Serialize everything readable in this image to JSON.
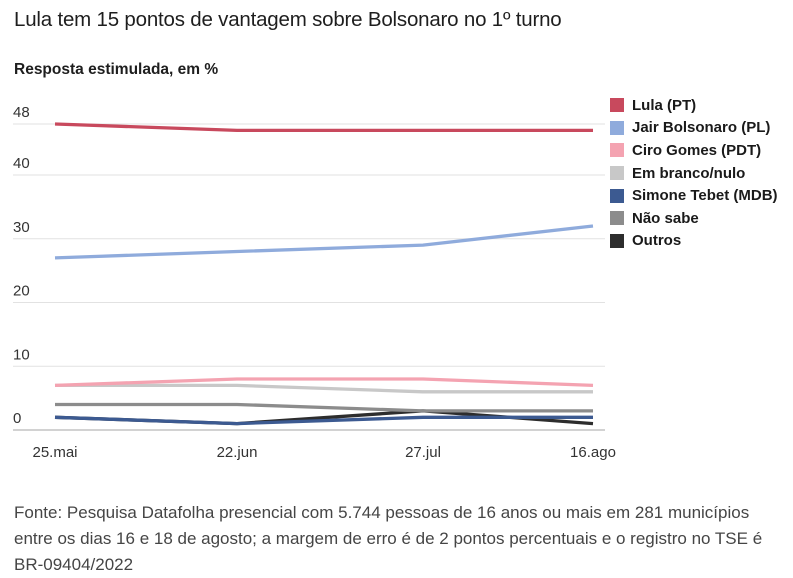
{
  "header": {
    "title": "Lula tem 15 pontos de vantagem sobre Bolsonaro no 1º turno",
    "subtitle": "Resposta estimulada, em %"
  },
  "chart_data": {
    "type": "line",
    "x": [
      "25.mai",
      "22.jun",
      "27.jul",
      "16.ago"
    ],
    "series": [
      {
        "name": "Lula (PT)",
        "color": "#c8495d",
        "values": [
          48,
          47,
          47,
          47
        ]
      },
      {
        "name": "Jair Bolsonaro (PL)",
        "color": "#8fabdc",
        "values": [
          27,
          28,
          29,
          32
        ]
      },
      {
        "name": "Ciro Gomes (PDT)",
        "color": "#f4a3b1",
        "values": [
          7,
          8,
          8,
          7
        ]
      },
      {
        "name": "Em branco/nulo",
        "color": "#c8c8c8",
        "values": [
          7,
          7,
          6,
          6
        ]
      },
      {
        "name": "Simone Tebet (MDB)",
        "color": "#3c5a91",
        "values": [
          2,
          1,
          2,
          2
        ]
      },
      {
        "name": "Não sabe",
        "color": "#8c8c8c",
        "values": [
          4,
          4,
          3,
          3
        ]
      },
      {
        "name": "Outros",
        "color": "#2d2d2d",
        "values": [
          2,
          1,
          3,
          1
        ]
      }
    ],
    "yticks": [
      0,
      10,
      20,
      30,
      40,
      48
    ],
    "ylim": [
      0,
      48
    ],
    "grid": true,
    "legend_position": "right",
    "title": "Lula tem 15 pontos de vantagem sobre Bolsonaro no 1º turno",
    "ylabel": "Resposta estimulada, em %",
    "xlabel": ""
  },
  "footer": {
    "source": "Fonte: Pesquisa Datafolha presencial com 5.744 pessoas de 16 anos ou mais em 281 municípios entre os dias 16 e 18 de agosto; a margem de erro é de 2 pontos percentuais e o registro no TSE é BR-09404/2022"
  }
}
